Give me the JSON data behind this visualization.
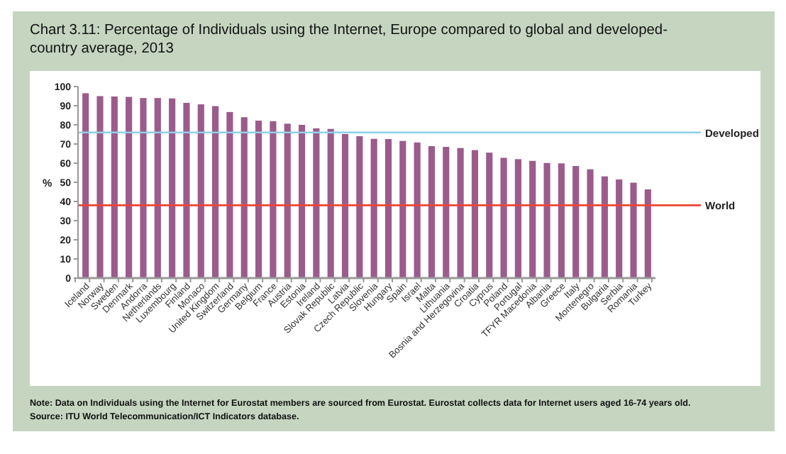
{
  "chart_data": {
    "type": "bar",
    "title": "Chart 3.11: Percentage of Individuals using the Internet, Europe compared to global and developed-country average, 2013",
    "ylabel": "%",
    "categories": [
      "Iceland",
      "Norway",
      "Sweden",
      "Denmark",
      "Andorra",
      "Netherlands",
      "Luxembourg",
      "Finland",
      "Monaco",
      "United Kingdom",
      "Switzerland",
      "Germany",
      "Belgium",
      "France",
      "Austria",
      "Estonia",
      "Ireland",
      "Slovak Republic",
      "Latvia",
      "Czech Republic",
      "Slovenia",
      "Hungary",
      "Spain",
      "Israel",
      "Malta",
      "Lithuania",
      "Bosnia and Herzegovina",
      "Croatia",
      "Cyprus",
      "Poland",
      "Portugal",
      "TFYR Macedonia",
      "Albania",
      "Greece",
      "Italy",
      "Montenegro",
      "Bulgaria",
      "Serbia",
      "Romania",
      "Turkey"
    ],
    "values": [
      96.5,
      95,
      94.8,
      94.6,
      94,
      94,
      93.8,
      91.5,
      90.7,
      89.8,
      86.7,
      84,
      82.2,
      81.9,
      80.6,
      80,
      78.2,
      77.9,
      75.2,
      74.1,
      72.7,
      72.6,
      71.6,
      70.8,
      68.9,
      68.5,
      67.9,
      66.8,
      65.5,
      62.8,
      62.1,
      61.2,
      60.1,
      59.9,
      58.5,
      56.8,
      53.1,
      51.5,
      49.8,
      46.3
    ],
    "color": "#9b5b8c",
    "ylim": [
      0,
      100
    ],
    "yticks": [
      0,
      10,
      20,
      30,
      40,
      50,
      60,
      70,
      80,
      90,
      100
    ],
    "grid": false,
    "ref_lines": [
      {
        "axis": "y",
        "value": 76,
        "label": "Developed",
        "color": "#8fd0e8"
      },
      {
        "axis": "y",
        "value": 38,
        "label": "World",
        "color": "#ee4433"
      }
    ],
    "annotations": [
      "Note: Data on Individuals using the Internet for Eurostat members are sourced from Eurostat. Eurostat collects data for Internet users aged 16-74 years old.",
      "Source: ITU World Telecommunication/ICT Indicators database."
    ]
  }
}
